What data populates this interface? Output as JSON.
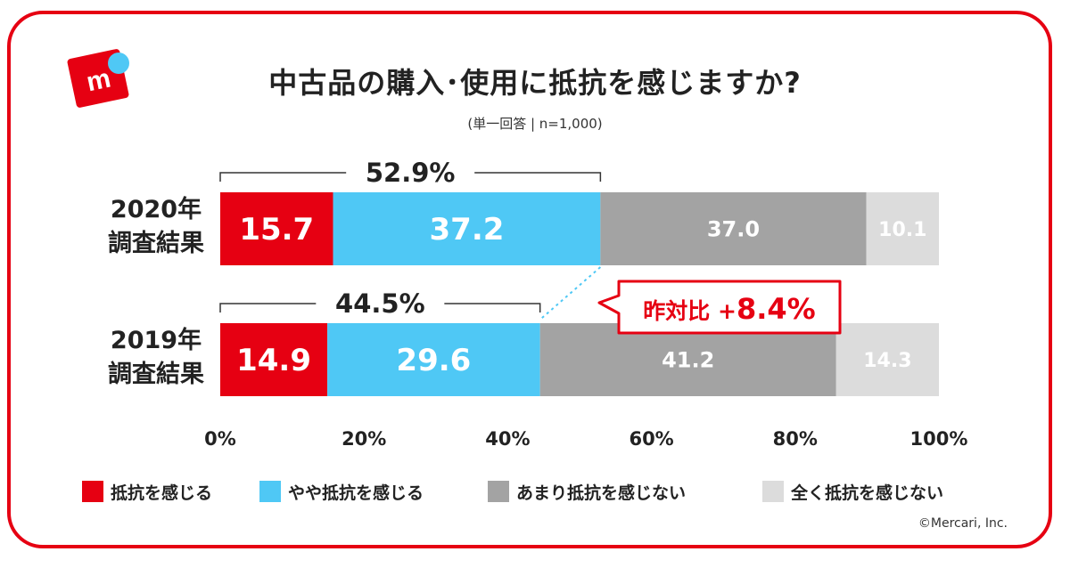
{
  "title": "中古品の購入･使用に抵抗を感じますか?",
  "subtitle": "(単一回答 | n=1,000)",
  "copyright": "©Mercari, Inc.",
  "colors": {
    "frame": "#e60012",
    "series": [
      "#e60012",
      "#4fc8f5",
      "#a3a3a3",
      "#dcdcdc"
    ],
    "callout_text": "#e60012",
    "logo_dot": "#4fc8f5"
  },
  "logo": {
    "icon": "mercari-box-logo",
    "letter": "m"
  },
  "chart_data": {
    "type": "bar",
    "orientation": "horizontal",
    "stacked": true,
    "categories": [
      "2020年\n調査結果",
      "2019年\n調査結果"
    ],
    "series": [
      {
        "name": "抵抗を感じる",
        "values": [
          15.7,
          14.9
        ]
      },
      {
        "name": "やや抵抗を感じる",
        "values": [
          37.2,
          29.6
        ]
      },
      {
        "name": "あまり抵抗を感じない",
        "values": [
          37.0,
          41.2
        ]
      },
      {
        "name": "全く抵抗を感じない",
        "values": [
          10.1,
          14.3
        ]
      }
    ],
    "xlim": [
      0,
      100
    ],
    "xticks": [
      "0%",
      "20%",
      "40%",
      "60%",
      "80%",
      "100%"
    ],
    "legend_position": "bottom",
    "grid": false,
    "annotations": {
      "bracket_totals": [
        "52.9%",
        "44.5%"
      ],
      "comparison_prefix": "昨対比 +",
      "comparison_value": "8.4%"
    }
  }
}
